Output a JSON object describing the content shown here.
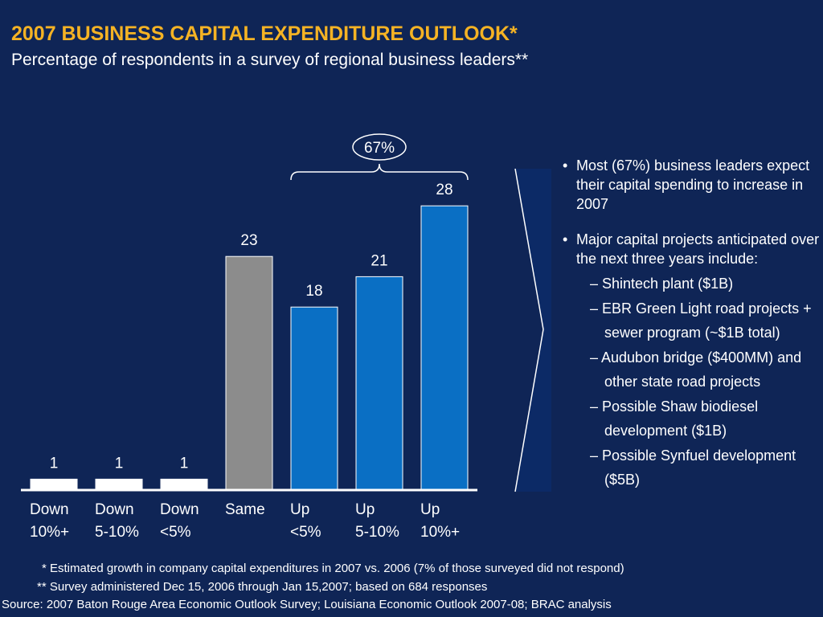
{
  "header": {
    "title": "2007 BUSINESS CAPITAL EXPENDITURE OUTLOOK*",
    "subtitle": "Percentage of respondents in a survey of regional business leaders**"
  },
  "chart_data": {
    "type": "bar",
    "categories": [
      [
        "Down",
        "10%+"
      ],
      [
        "Down",
        "5-10%"
      ],
      [
        "Down",
        "<5%"
      ],
      [
        "Same",
        ""
      ],
      [
        "Up",
        "<5%"
      ],
      [
        "Up",
        "5-10%"
      ],
      [
        "Up",
        "10%+"
      ]
    ],
    "values": [
      1,
      1,
      1,
      23,
      18,
      21,
      28
    ],
    "colors": [
      "#ffffff",
      "#ffffff",
      "#ffffff",
      "#8c8c8c",
      "#0a6fc4",
      "#0a6fc4",
      "#0a6fc4"
    ],
    "ylim": [
      0,
      28
    ],
    "group_annotation": {
      "label": "67%",
      "from_category": 4,
      "to_category": 6
    }
  },
  "bullets": [
    {
      "symbol": "•",
      "text": "Most (67%) business leaders expect their capital spending to increase in 2007"
    },
    {
      "symbol": "•",
      "text": "Major capital projects anticipated over the next three years include:"
    }
  ],
  "subitems": [
    "– Shintech plant ($1B)",
    "– EBR Green Light  road projects + sewer program (~$1B total)",
    "– Audubon bridge ($400MM) and other state road projects",
    "– Possible Shaw biodiesel development ($1B)",
    "– Possible Synfuel development ($5B)"
  ],
  "footnotes": {
    "note1": "* Estimated growth in company capital expenditures in 2007 vs. 2006 (7% of those surveyed did not respond)",
    "note2": "** Survey administered Dec 15, 2006 through Jan 15,2007; based on 684 responses",
    "source": "Source: 2007 Baton Rouge Area Economic Outlook Survey; Louisiana Economic Outlook 2007-08; BRAC analysis"
  },
  "colors": {
    "background": "#0f2556",
    "title": "#f5b324",
    "up_bar": "#0a6fc4",
    "same_bar": "#8c8c8c",
    "down_bar": "#ffffff",
    "arrow_fill": "#0c2a66"
  }
}
